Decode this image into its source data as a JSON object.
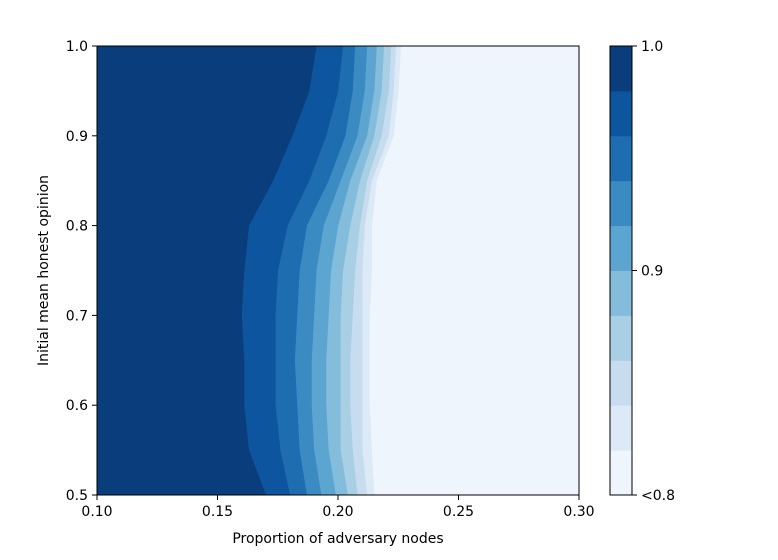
{
  "chart_data": {
    "type": "heatmap",
    "subtype": "filled-contour",
    "title": "",
    "xlabel": "Proportion of adversary nodes",
    "ylabel": "Initial mean honest opinion",
    "xlim": [
      0.1,
      0.3
    ],
    "ylim": [
      0.5,
      1.0
    ],
    "x_ticks": [
      "0.10",
      "0.15",
      "0.20",
      "0.25",
      "0.30"
    ],
    "y_ticks": [
      "0.5",
      "0.6",
      "0.7",
      "0.8",
      "0.9",
      "1.0"
    ],
    "grid": false,
    "colorbar": {
      "range": [
        0.8,
        1.0
      ],
      "tick_values": [
        0.8,
        0.9,
        1.0
      ],
      "tick_labels": [
        "<0.8",
        "0.9",
        "1.0"
      ],
      "levels": 10,
      "colors": [
        "#eef5fc",
        "#dce9f6",
        "#c8dcf0",
        "#a9cfe5",
        "#84bcdb",
        "#5da5d1",
        "#3b8bc2",
        "#1f6db1",
        "#0d559f",
        "#0a3d7c"
      ]
    },
    "y_samples": [
      0.5,
      0.55,
      0.6,
      0.65,
      0.7,
      0.75,
      0.8,
      0.85,
      0.9,
      0.95,
      1.0
    ],
    "contour_boundaries": [
      {
        "level": 0.98,
        "x": [
          0.17,
          0.163,
          0.161,
          0.161,
          0.16,
          0.161,
          0.163,
          0.173,
          0.181,
          0.188,
          0.191
        ]
      },
      {
        "level": 0.96,
        "x": [
          0.18,
          0.176,
          0.174,
          0.174,
          0.174,
          0.175,
          0.179,
          0.188,
          0.195,
          0.2,
          0.202
        ]
      },
      {
        "level": 0.94,
        "x": [
          0.187,
          0.184,
          0.183,
          0.182,
          0.183,
          0.184,
          0.187,
          0.196,
          0.203,
          0.206,
          0.207
        ]
      },
      {
        "level": 0.92,
        "x": [
          0.193,
          0.19,
          0.189,
          0.189,
          0.19,
          0.191,
          0.194,
          0.201,
          0.208,
          0.211,
          0.212
        ]
      },
      {
        "level": 0.9,
        "x": [
          0.199,
          0.196,
          0.195,
          0.195,
          0.196,
          0.197,
          0.2,
          0.205,
          0.212,
          0.215,
          0.216
        ]
      },
      {
        "level": 0.88,
        "x": [
          0.204,
          0.201,
          0.201,
          0.201,
          0.201,
          0.202,
          0.205,
          0.209,
          0.215,
          0.218,
          0.219
        ]
      },
      {
        "level": 0.86,
        "x": [
          0.208,
          0.206,
          0.205,
          0.205,
          0.206,
          0.207,
          0.209,
          0.212,
          0.218,
          0.221,
          0.222
        ]
      },
      {
        "level": 0.84,
        "x": [
          0.212,
          0.21,
          0.21,
          0.21,
          0.21,
          0.21,
          0.211,
          0.214,
          0.221,
          0.223,
          0.224
        ]
      },
      {
        "level": 0.82,
        "x": [
          0.215,
          0.214,
          0.213,
          0.213,
          0.213,
          0.214,
          0.214,
          0.216,
          0.223,
          0.225,
          0.226
        ]
      }
    ]
  }
}
